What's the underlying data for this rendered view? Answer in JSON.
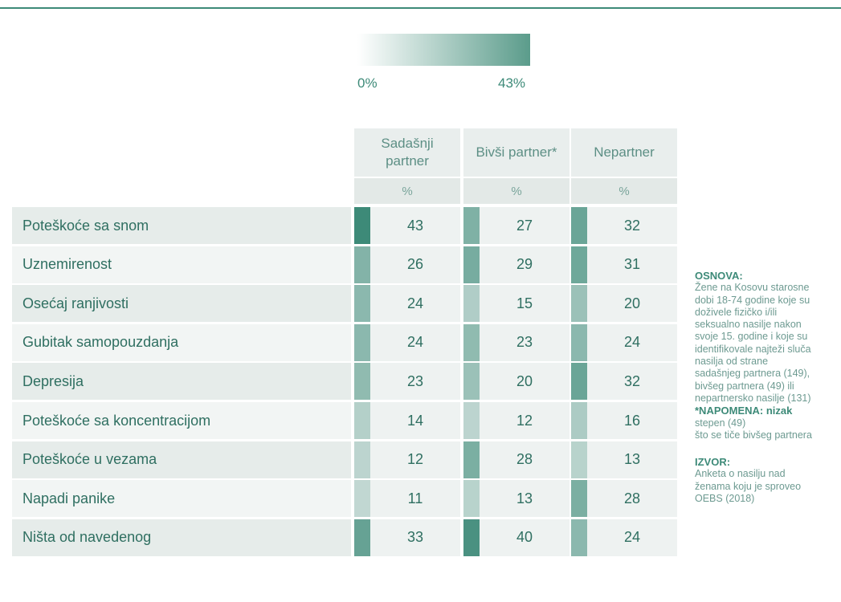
{
  "legend": {
    "min": {
      "value": 0,
      "label": "0%"
    },
    "max": {
      "value": 43,
      "label": "43%"
    }
  },
  "table": {
    "columns": [
      {
        "name": "Sadašnji partner",
        "unit": "%"
      },
      {
        "name": "Bivši partner*",
        "unit": "%"
      },
      {
        "name": "Nepartner",
        "unit": "%"
      }
    ],
    "rows": [
      {
        "label": "Poteškoće sa snom",
        "values": [
          43,
          27,
          32
        ]
      },
      {
        "label": "Uznemirenost",
        "values": [
          26,
          29,
          31
        ]
      },
      {
        "label": "Osećaj ranjivosti",
        "values": [
          24,
          15,
          20
        ]
      },
      {
        "label": "Gubitak samopouzdanja",
        "values": [
          24,
          23,
          24
        ]
      },
      {
        "label": "Depresija",
        "values": [
          23,
          20,
          32
        ]
      },
      {
        "label": "Poteškoće sa koncentracijom",
        "values": [
          14,
          12,
          16
        ]
      },
      {
        "label": "Poteškoće u vezama",
        "values": [
          12,
          28,
          13
        ]
      },
      {
        "label": "Napadi panike",
        "values": [
          11,
          13,
          28
        ]
      },
      {
        "label": "Ništa od navedenog",
        "values": [
          33,
          40,
          24
        ]
      }
    ]
  },
  "notes": {
    "osnova_title": "OSNOVA:",
    "osnova_lines": [
      "Žene na Kosovu starosne",
      "dobi 18-74 godine koje su",
      "doživele fizičko i/ili",
      "seksualno nasilje nakon",
      "svoje 15. godine i koje su",
      "identifikovale najteži sluča",
      "nasilja od strane",
      "sadašnjeg partnera (149),",
      "bivšeg partnera (49) ili",
      "nepartnersko nasilje (131)"
    ],
    "napomena_title": "*NAPOMENA: nizak",
    "napomena_lines": [
      "stepen (49)",
      "što se tiče bivšeg partnera"
    ],
    "izvor_title": "IZVOR:",
    "izvor_lines": [
      "Anketa o nasilju nad",
      "ženama koju je sproveo",
      "OEBS (2018)"
    ]
  }
}
